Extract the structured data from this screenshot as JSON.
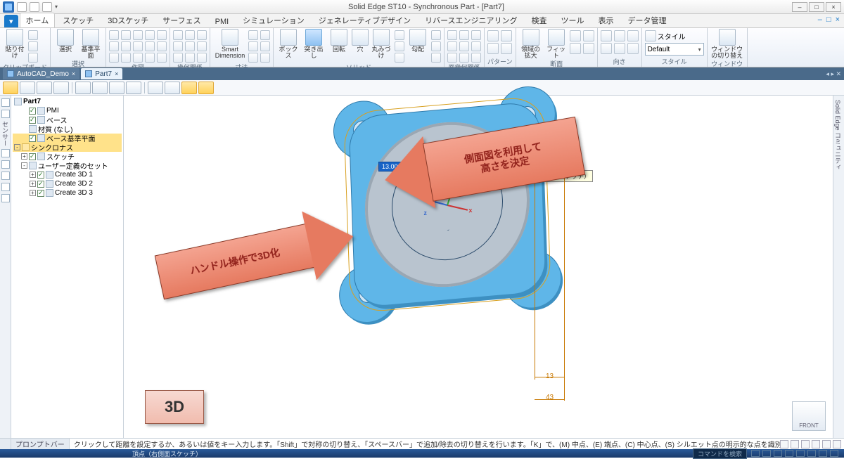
{
  "window": {
    "title": "Solid Edge ST10 - Synchronous Part - [Part7]",
    "min": "–",
    "max": "□",
    "close": "×",
    "help": "?"
  },
  "ribbon": {
    "app_tab": "▾",
    "tabs": [
      "ホーム",
      "スケッチ",
      "3Dスケッチ",
      "サーフェス",
      "PMI",
      "シミュレーション",
      "ジェネレーティブデザイン",
      "リバースエンジニアリング",
      "検査",
      "ツール",
      "表示",
      "データ管理"
    ],
    "active_tab_index": 0,
    "groups": {
      "clipboard": {
        "label": "クリップボード",
        "paste": "貼り付け"
      },
      "select": {
        "label": "選択",
        "btn": "選択",
        "plane": "基準平面"
      },
      "draw": {
        "label": "作図"
      },
      "relate": {
        "label": "幾何関係"
      },
      "smartdim": {
        "label": "寸法",
        "btn": "Smart\nDimension"
      },
      "solids": {
        "label": "ソリッド",
        "box": "ボックス",
        "extrude": "突き出し",
        "revolve": "回転",
        "hole": "穴",
        "round": "丸みづけ",
        "draft": "勾配"
      },
      "facerel": {
        "label": "面幾何関係"
      },
      "pattern": {
        "label": "パターン"
      },
      "section": {
        "label": "断面",
        "region": "領域の拡大",
        "fit": "フィット"
      },
      "orient": {
        "label": "向き"
      },
      "style": {
        "label": "スタイル",
        "heading": "スタイル",
        "value": "Default"
      },
      "windowgrp": {
        "label": "ウィンドウ",
        "switch": "ウィンドウの切り替え"
      }
    }
  },
  "doctabs": {
    "tabs": [
      {
        "name": "AutoCAD_Demo",
        "active": false
      },
      {
        "name": "Part7",
        "active": true
      }
    ],
    "close": "×",
    "right": "◂ ▸ ✕"
  },
  "tree": {
    "root": "Part7",
    "items": [
      {
        "indent": 1,
        "check": true,
        "label": "PMI"
      },
      {
        "indent": 1,
        "check": true,
        "label": "ベース"
      },
      {
        "indent": 1,
        "check": false,
        "label": "材質 (なし)"
      },
      {
        "indent": 1,
        "check": true,
        "label": "ベース基準平面",
        "hl": true
      },
      {
        "indent": 0,
        "toggle": "-",
        "label": "シンクロナス",
        "hl": true,
        "yellow": true
      },
      {
        "indent": 1,
        "toggle": "+",
        "check": true,
        "label": "スケッチ"
      },
      {
        "indent": 1,
        "toggle": "-",
        "label": "ユーザー定義のセット"
      },
      {
        "indent": 2,
        "toggle": "+",
        "check": true,
        "label": "Create 3D 1"
      },
      {
        "indent": 2,
        "toggle": "+",
        "check": true,
        "label": "Create 3D 2"
      },
      {
        "indent": 2,
        "toggle": "+",
        "check": true,
        "label": "Create 3D 3"
      }
    ]
  },
  "leftbar_label": "センサー",
  "rightbar_label": "Solid Edge コミュニティ",
  "callouts": {
    "dim_input": "13.00 mm",
    "tooltip": "頂点（右側面スケッチ）",
    "d_074": "07.4",
    "d_13": "13",
    "d_43": "43",
    "axis_x": "x",
    "axis_y": "y",
    "axis_z": "z"
  },
  "arrows": {
    "left_text": "ハンドル操作で3D化",
    "right_line1": "側面図を利用して",
    "right_line2": "高さを決定"
  },
  "badge3d": "3D",
  "viewcube": "FRONT",
  "prompt": {
    "label": "プロンプトバー",
    "msg": "クリックして距離を設定するか、あるいは値をキー入力します。「Shift」で対称の切り替え、「スペースバー」で追加/除去の切り替えを行います。「K」で、(M) 中点、(E) 端点、(C) 中心点、(S) シルエット点の明示的な点を識別します。"
  },
  "status": {
    "center": "頂点（右側面スケッチ）",
    "cmd_placeholder": "コマンドを検索"
  },
  "colors": {
    "part_main": "#5fb6e8",
    "part_shadow": "#3d90c2",
    "part_edge": "#2f7aab",
    "boss": "#b9c4cf",
    "sketch_line": "#2a4a6a",
    "dim_line": "#c87800",
    "dim_box_bg": "#1763c6",
    "arrow_fill": "#e67a60",
    "arrow_border": "#8a3a28",
    "arrow_text": "#90201a",
    "badge_bg": "#f1bcae"
  }
}
